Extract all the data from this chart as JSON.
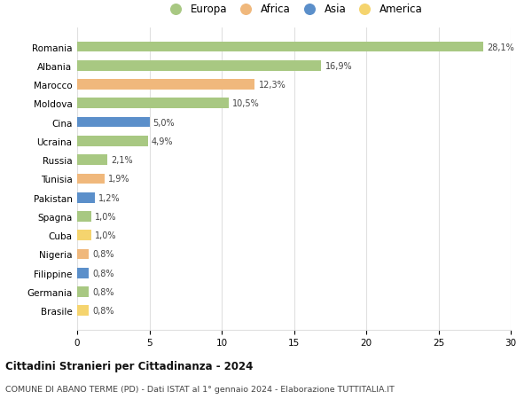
{
  "countries": [
    "Romania",
    "Albania",
    "Marocco",
    "Moldova",
    "Cina",
    "Ucraina",
    "Russia",
    "Tunisia",
    "Pakistan",
    "Spagna",
    "Cuba",
    "Nigeria",
    "Filippine",
    "Germania",
    "Brasile"
  ],
  "values": [
    28.1,
    16.9,
    12.3,
    10.5,
    5.0,
    4.9,
    2.1,
    1.9,
    1.2,
    1.0,
    1.0,
    0.8,
    0.8,
    0.8,
    0.8
  ],
  "labels": [
    "28,1%",
    "16,9%",
    "12,3%",
    "10,5%",
    "5,0%",
    "4,9%",
    "2,1%",
    "1,9%",
    "1,2%",
    "1,0%",
    "1,0%",
    "0,8%",
    "0,8%",
    "0,8%",
    "0,8%"
  ],
  "continents": [
    "Europa",
    "Europa",
    "Africa",
    "Europa",
    "Asia",
    "Europa",
    "Europa",
    "Africa",
    "Asia",
    "Europa",
    "America",
    "Africa",
    "Asia",
    "Europa",
    "America"
  ],
  "continent_colors": {
    "Europa": "#a8c882",
    "Africa": "#f0b87c",
    "Asia": "#5b8fca",
    "America": "#f5d46e"
  },
  "legend_order": [
    "Europa",
    "Africa",
    "Asia",
    "America"
  ],
  "title": "Cittadini Stranieri per Cittadinanza - 2024",
  "subtitle": "COMUNE DI ABANO TERME (PD) - Dati ISTAT al 1° gennaio 2024 - Elaborazione TUTTITALIA.IT",
  "xlim": [
    0,
    30
  ],
  "xticks": [
    0,
    5,
    10,
    15,
    20,
    25,
    30
  ],
  "bg_color": "#ffffff",
  "grid_color": "#e0e0e0",
  "bar_height": 0.55
}
